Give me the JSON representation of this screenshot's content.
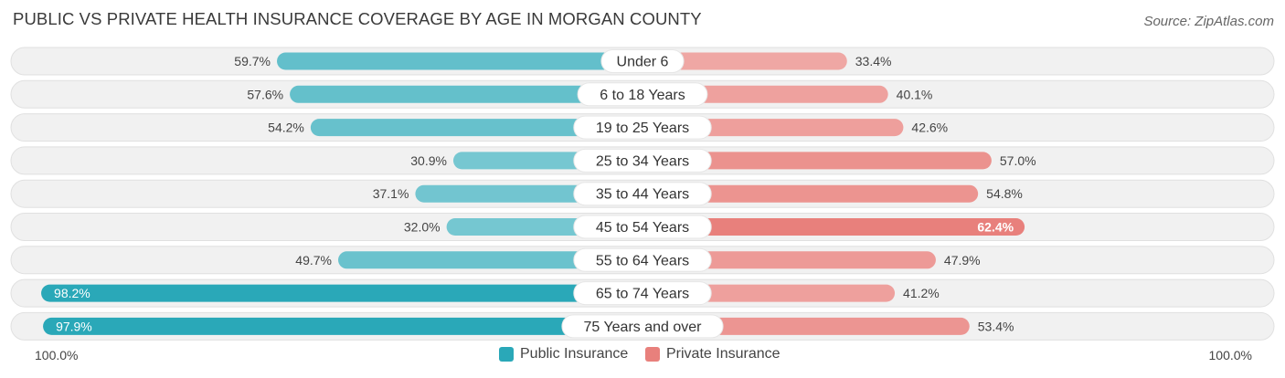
{
  "chart_data": {
    "type": "bar",
    "orientation": "diverging-horizontal",
    "title": "PUBLIC VS PRIVATE HEALTH INSURANCE COVERAGE BY AGE IN MORGAN COUNTY",
    "source": "Source: ZipAtlas.com",
    "categories": [
      "Under 6",
      "6 to 18 Years",
      "19 to 25 Years",
      "25 to 34 Years",
      "35 to 44 Years",
      "45 to 54 Years",
      "55 to 64 Years",
      "65 to 74 Years",
      "75 Years and over"
    ],
    "series": [
      {
        "name": "Public Insurance",
        "values": [
          59.7,
          57.6,
          54.2,
          30.9,
          37.1,
          32.0,
          49.7,
          98.2,
          97.9
        ],
        "labels": [
          "59.7%",
          "57.6%",
          "54.2%",
          "30.9%",
          "37.1%",
          "32.0%",
          "49.7%",
          "98.2%",
          "97.9%"
        ]
      },
      {
        "name": "Private Insurance",
        "values": [
          33.4,
          40.1,
          42.6,
          57.0,
          54.8,
          62.4,
          47.9,
          41.2,
          53.4
        ],
        "labels": [
          "33.4%",
          "40.1%",
          "42.6%",
          "57.0%",
          "54.8%",
          "62.4%",
          "47.9%",
          "41.2%",
          "53.4%"
        ]
      }
    ],
    "axis_min_label": "100.0%",
    "axis_max_label": "100.0%",
    "xlim": [
      0,
      100
    ],
    "colors": {
      "public": "#2aa8b8",
      "private": "#e8807c",
      "row_bg": "#f1f1f1",
      "row_border": "#e0e0e0"
    }
  }
}
